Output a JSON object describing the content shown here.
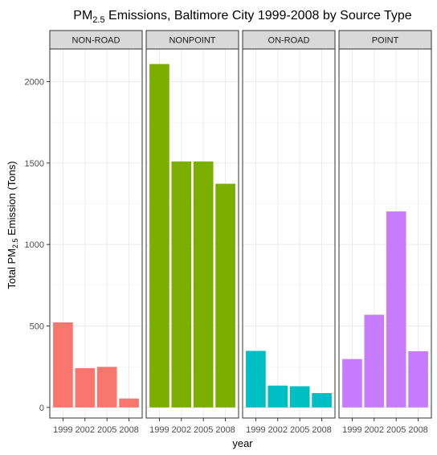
{
  "chart_data": {
    "type": "bar",
    "title": {
      "prefix": "PM",
      "subscript": "2.5",
      "suffix": " Emissions, Baltimore City 1999-2008 by Source Type"
    },
    "xlabel": "year",
    "ylabel": {
      "prefix": "Total PM",
      "subscript": "2.5",
      "suffix": " Emission (Tons)"
    },
    "categories": [
      "1999",
      "2002",
      "2005",
      "2008"
    ],
    "ylim": [
      -65,
      2200
    ],
    "yticks": [
      0,
      500,
      1000,
      1500,
      2000
    ],
    "grid": true,
    "legend": "none",
    "facets": [
      {
        "name": "NON-ROAD",
        "color": "#F8766D",
        "values": [
          522,
          241,
          249,
          55
        ]
      },
      {
        "name": "NONPOINT",
        "color": "#7CAE00",
        "values": [
          2108,
          1510,
          1510,
          1373
        ]
      },
      {
        "name": "ON-ROAD",
        "color": "#00BFC4",
        "values": [
          347,
          134,
          130,
          88
        ]
      },
      {
        "name": "POINT",
        "color": "#C77CFF",
        "values": [
          297,
          569,
          1203,
          345
        ]
      }
    ]
  }
}
